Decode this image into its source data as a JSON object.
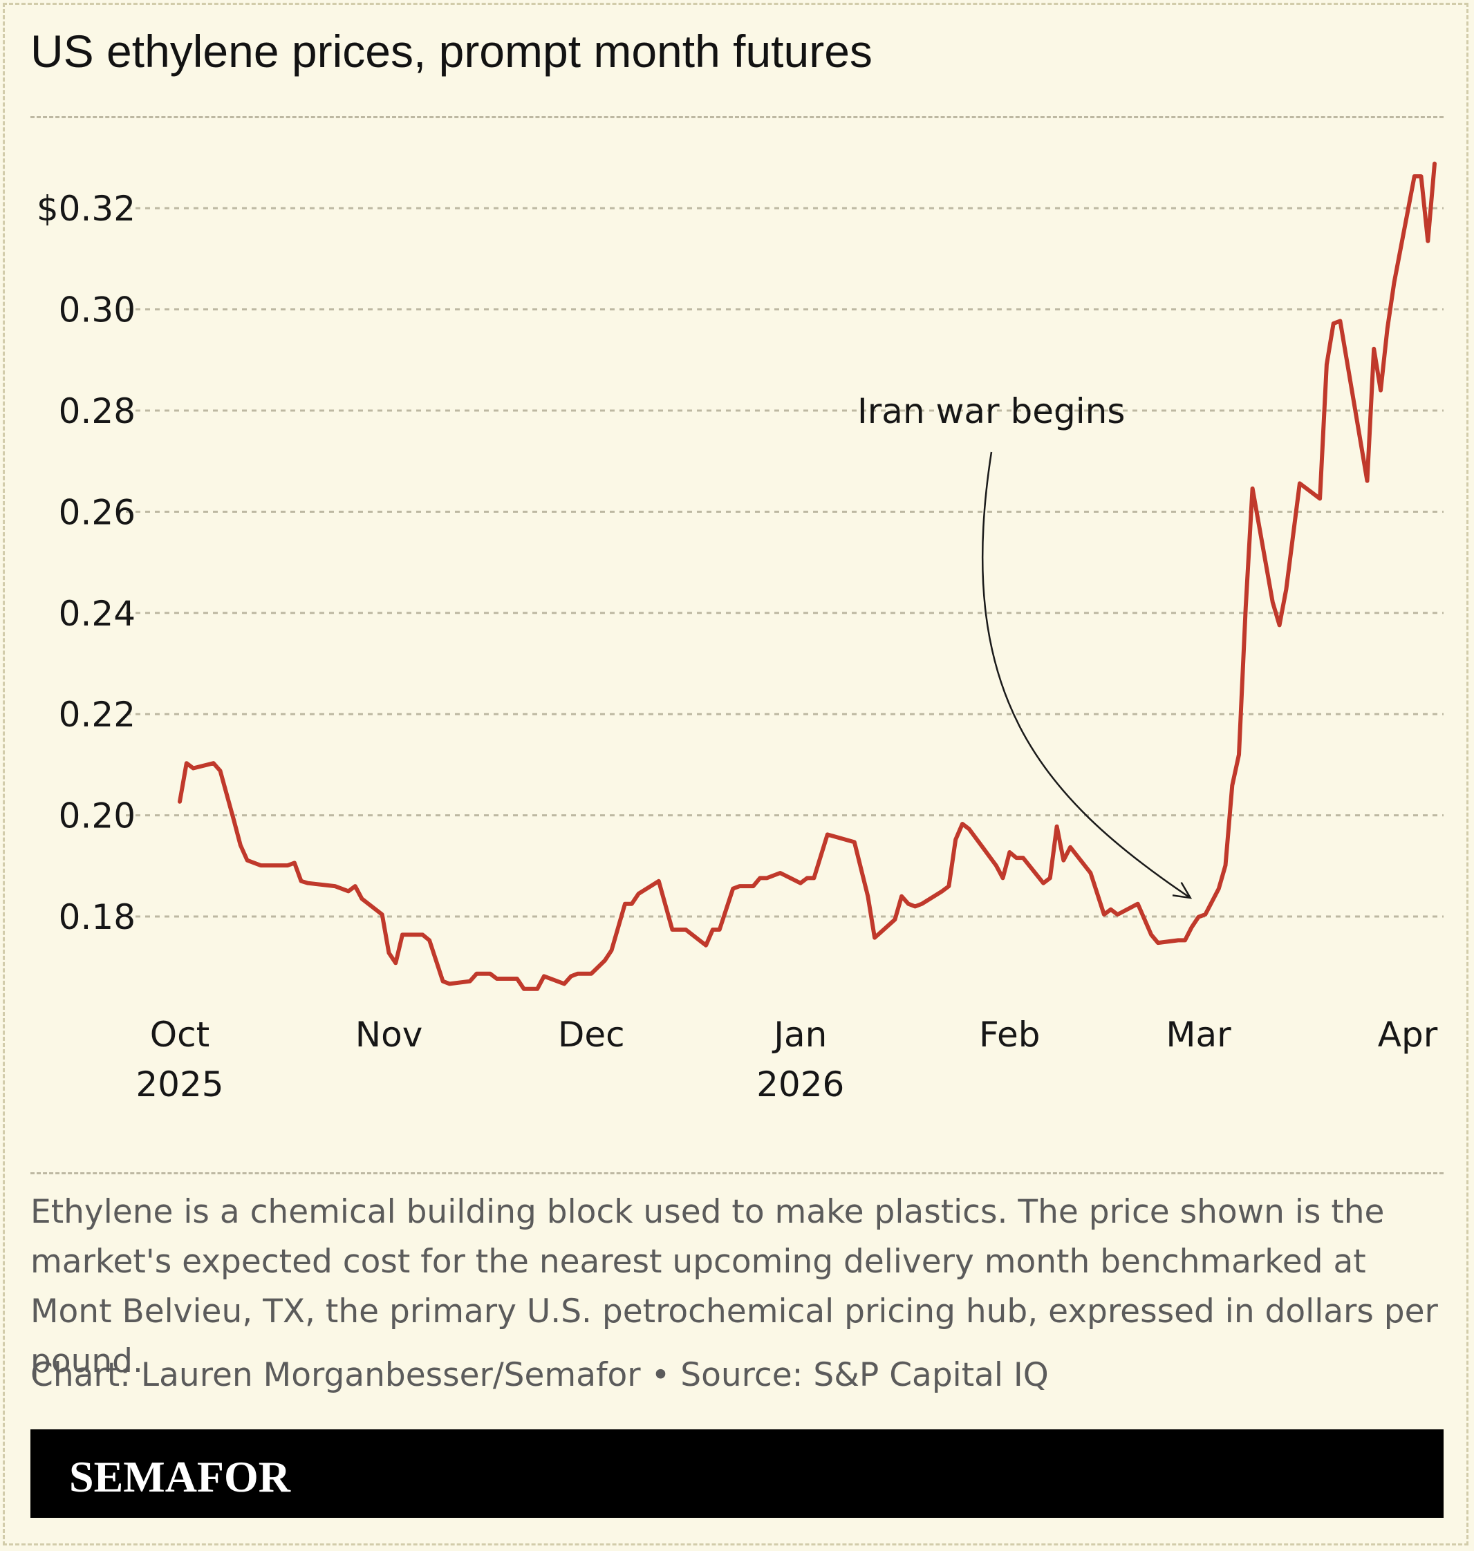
{
  "title": "US ethylene prices, prompt month futures",
  "caption": "Ethylene is a chemical building block used to make plastics. The price shown is the market's expected cost for the nearest upcoming delivery month benchmarked at Mont Belvieu, TX, the primary U.S. petrochemical pricing hub, expressed in dollars per pound.",
  "credit": "Chart: Lauren Morganbesser/Semafor • Source: S&P Capital IQ",
  "footer": {
    "logo": "SEMAFOR"
  },
  "colors": {
    "background": "#fbf8e6",
    "line": "#c0392b",
    "grid": "#bdb8a2",
    "footer": "#000000"
  },
  "chart_data": {
    "type": "line",
    "title": "US ethylene prices, prompt month futures",
    "xlabel": "",
    "ylabel": "",
    "ylim": [
      0.165,
      0.33
    ],
    "xlim": [
      "2025-10-01",
      "2026-04-01"
    ],
    "grid": true,
    "y_ticks": [
      {
        "value": 0.18,
        "label": "0.18"
      },
      {
        "value": 0.2,
        "label": "0.20"
      },
      {
        "value": 0.22,
        "label": "0.22"
      },
      {
        "value": 0.24,
        "label": "0.24"
      },
      {
        "value": 0.26,
        "label": "0.26"
      },
      {
        "value": 0.28,
        "label": "0.28"
      },
      {
        "value": 0.3,
        "label": "0.30"
      },
      {
        "value": 0.32,
        "label": "$0.32"
      }
    ],
    "x_ticks": [
      {
        "date": "2025-10-01",
        "label": "Oct",
        "sublabel": "2025"
      },
      {
        "date": "2025-11-01",
        "label": "Nov",
        "sublabel": ""
      },
      {
        "date": "2025-12-01",
        "label": "Dec",
        "sublabel": ""
      },
      {
        "date": "2026-01-01",
        "label": "Jan",
        "sublabel": "2026"
      },
      {
        "date": "2026-02-01",
        "label": "Feb",
        "sublabel": ""
      },
      {
        "date": "2026-03-01",
        "label": "Mar",
        "sublabel": ""
      },
      {
        "date": "2026-04-01",
        "label": "Apr",
        "sublabel": ""
      }
    ],
    "annotations": [
      {
        "text": "Iran war begins",
        "date": "2026-02-28",
        "value": 0.1804
      }
    ],
    "series": [
      {
        "color": "#c0392b",
        "points": [
          [
            "2025-10-01",
            0.2027
          ],
          [
            "2025-10-02",
            0.2103
          ],
          [
            "2025-10-03",
            0.2093
          ],
          [
            "2025-10-06",
            0.2103
          ],
          [
            "2025-10-07",
            0.2088
          ],
          [
            "2025-10-09",
            0.1991
          ],
          [
            "2025-10-10",
            0.1941
          ],
          [
            "2025-10-11",
            0.1911
          ],
          [
            "2025-10-13",
            0.1901
          ],
          [
            "2025-10-17",
            0.1901
          ],
          [
            "2025-10-18",
            0.1906
          ],
          [
            "2025-10-19",
            0.187
          ],
          [
            "2025-10-20",
            0.1866
          ],
          [
            "2025-10-24",
            0.186
          ],
          [
            "2025-10-26",
            0.185
          ],
          [
            "2025-10-27",
            0.186
          ],
          [
            "2025-10-28",
            0.1835
          ],
          [
            "2025-10-31",
            0.1804
          ],
          [
            "2025-11-01",
            0.1728
          ],
          [
            "2025-11-02",
            0.1708
          ],
          [
            "2025-11-03",
            0.1764
          ],
          [
            "2025-11-06",
            0.1764
          ],
          [
            "2025-11-07",
            0.1753
          ],
          [
            "2025-11-09",
            0.1672
          ],
          [
            "2025-11-10",
            0.1667
          ],
          [
            "2025-11-13",
            0.1672
          ],
          [
            "2025-11-14",
            0.1687
          ],
          [
            "2025-11-16",
            0.1687
          ],
          [
            "2025-11-17",
            0.1677
          ],
          [
            "2025-11-20",
            0.1677
          ],
          [
            "2025-11-21",
            0.1657
          ],
          [
            "2025-11-23",
            0.1657
          ],
          [
            "2025-11-24",
            0.1682
          ],
          [
            "2025-11-27",
            0.1667
          ],
          [
            "2025-11-28",
            0.1682
          ],
          [
            "2025-11-29",
            0.1687
          ],
          [
            "2025-12-01",
            0.1687
          ],
          [
            "2025-12-03",
            0.1713
          ],
          [
            "2025-12-04",
            0.1733
          ],
          [
            "2025-12-06",
            0.1825
          ],
          [
            "2025-12-07",
            0.1825
          ],
          [
            "2025-12-08",
            0.1845
          ],
          [
            "2025-12-11",
            0.187
          ],
          [
            "2025-12-13",
            0.1774
          ],
          [
            "2025-12-15",
            0.1774
          ],
          [
            "2025-12-18",
            0.1743
          ],
          [
            "2025-12-19",
            0.1774
          ],
          [
            "2025-12-20",
            0.1774
          ],
          [
            "2025-12-22",
            0.1855
          ],
          [
            "2025-12-23",
            0.186
          ],
          [
            "2025-12-25",
            0.186
          ],
          [
            "2025-12-26",
            0.1876
          ],
          [
            "2025-12-27",
            0.1876
          ],
          [
            "2025-12-29",
            0.1886
          ],
          [
            "2026-01-01",
            0.1866
          ],
          [
            "2026-01-02",
            0.1876
          ],
          [
            "2026-01-03",
            0.1876
          ],
          [
            "2026-01-05",
            0.1962
          ],
          [
            "2026-01-09",
            0.1947
          ],
          [
            "2026-01-11",
            0.184
          ],
          [
            "2026-01-12",
            0.1758
          ],
          [
            "2026-01-15",
            0.1794
          ],
          [
            "2026-01-16",
            0.184
          ],
          [
            "2026-01-17",
            0.1825
          ],
          [
            "2026-01-18",
            0.182
          ],
          [
            "2026-01-19",
            0.1825
          ],
          [
            "2026-01-22",
            0.185
          ],
          [
            "2026-01-23",
            0.186
          ],
          [
            "2026-01-24",
            0.1952
          ],
          [
            "2026-01-25",
            0.1983
          ],
          [
            "2026-01-26",
            0.1973
          ],
          [
            "2026-01-28",
            0.1937
          ],
          [
            "2026-01-30",
            0.1901
          ],
          [
            "2026-01-31",
            0.1876
          ],
          [
            "2026-02-01",
            0.1927
          ],
          [
            "2026-02-02",
            0.1916
          ],
          [
            "2026-02-03",
            0.1916
          ],
          [
            "2026-02-06",
            0.1866
          ],
          [
            "2026-02-07",
            0.1876
          ],
          [
            "2026-02-08",
            0.1978
          ],
          [
            "2026-02-09",
            0.1911
          ],
          [
            "2026-02-10",
            0.1937
          ],
          [
            "2026-02-13",
            0.1886
          ],
          [
            "2026-02-15",
            0.1804
          ],
          [
            "2026-02-16",
            0.1814
          ],
          [
            "2026-02-17",
            0.1804
          ],
          [
            "2026-02-20",
            0.1825
          ],
          [
            "2026-02-22",
            0.1764
          ],
          [
            "2026-02-23",
            0.1748
          ],
          [
            "2026-02-26",
            0.1753
          ],
          [
            "2026-02-27",
            0.1753
          ],
          [
            "2026-02-28",
            0.1779
          ],
          [
            "2026-03-01",
            0.1799
          ],
          [
            "2026-03-02",
            0.1804
          ],
          [
            "2026-03-04",
            0.1855
          ],
          [
            "2026-03-05",
            0.1901
          ],
          [
            "2026-03-06",
            0.2059
          ],
          [
            "2026-03-07",
            0.212
          ],
          [
            "2026-03-08",
            0.2411
          ],
          [
            "2026-03-09",
            0.2646
          ],
          [
            "2026-03-12",
            0.2421
          ],
          [
            "2026-03-13",
            0.2376
          ],
          [
            "2026-03-14",
            0.2447
          ],
          [
            "2026-03-16",
            0.2656
          ],
          [
            "2026-03-19",
            0.2626
          ],
          [
            "2026-03-20",
            0.2891
          ],
          [
            "2026-03-21",
            0.2972
          ],
          [
            "2026-03-22",
            0.2977
          ],
          [
            "2026-03-26",
            0.2661
          ],
          [
            "2026-03-27",
            0.2922
          ],
          [
            "2026-03-28",
            0.284
          ],
          [
            "2026-03-29",
            0.2962
          ],
          [
            "2026-03-30",
            0.3053
          ],
          [
            "2026-04-02",
            0.3263
          ],
          [
            "2026-04-03",
            0.3263
          ],
          [
            "2026-04-04",
            0.3135
          ],
          [
            "2026-04-05",
            0.3288
          ]
        ]
      }
    ]
  }
}
